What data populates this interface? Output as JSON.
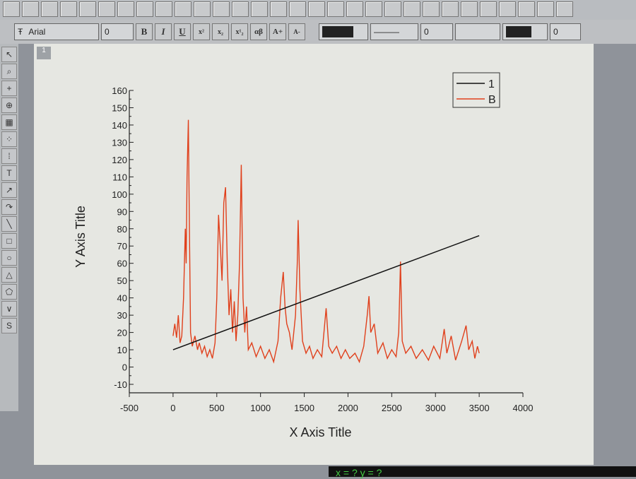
{
  "toolbar": {
    "font_name": "Arial",
    "font_size": "0",
    "bold": "B",
    "italic": "I",
    "underline": "U",
    "superscript": "x²",
    "subscript": "x₂",
    "supsub": "x¹₂",
    "greek": "αβ",
    "increase_font": "A+",
    "decrease_font": "A-",
    "line_width": "0",
    "fill_width": "0"
  },
  "layer_tab": "1",
  "status": {
    "coords": "x = ?  y = ?"
  },
  "chart_data": {
    "type": "line",
    "xlabel": "X Axis Title",
    "ylabel": "Y Axis Title",
    "xlim": [
      -500,
      4000
    ],
    "ylim": [
      -10,
      160
    ],
    "xticks": [
      -500,
      0,
      500,
      1000,
      1500,
      2000,
      2500,
      3000,
      3500,
      4000
    ],
    "yticks": [
      -10,
      0,
      10,
      20,
      30,
      40,
      50,
      60,
      70,
      80,
      90,
      100,
      110,
      120,
      130,
      140,
      150,
      160
    ],
    "legend": "top-right",
    "series": [
      {
        "name": "1",
        "color": "#111111",
        "x": [
          0,
          3500
        ],
        "y": [
          10,
          76
        ]
      },
      {
        "name": "B",
        "color": "#e0401c",
        "x": [
          0,
          20,
          40,
          60,
          80,
          100,
          120,
          140,
          150,
          160,
          175,
          185,
          200,
          220,
          250,
          280,
          300,
          330,
          360,
          390,
          420,
          450,
          480,
          500,
          520,
          540,
          560,
          580,
          600,
          620,
          640,
          660,
          680,
          700,
          720,
          740,
          760,
          780,
          800,
          820,
          840,
          860,
          900,
          950,
          1000,
          1050,
          1100,
          1150,
          1200,
          1230,
          1260,
          1280,
          1300,
          1330,
          1360,
          1400,
          1420,
          1430,
          1450,
          1480,
          1520,
          1560,
          1600,
          1650,
          1700,
          1750,
          1780,
          1820,
          1870,
          1920,
          1970,
          2020,
          2080,
          2130,
          2180,
          2220,
          2240,
          2260,
          2300,
          2340,
          2400,
          2450,
          2500,
          2550,
          2580,
          2600,
          2620,
          2660,
          2720,
          2780,
          2850,
          2920,
          2980,
          3050,
          3100,
          3130,
          3180,
          3230,
          3300,
          3350,
          3380,
          3420,
          3450,
          3480,
          3500
        ],
        "y": [
          18,
          25,
          17,
          30,
          14,
          18,
          40,
          80,
          60,
          110,
          143,
          90,
          20,
          12,
          18,
          10,
          14,
          8,
          12,
          6,
          10,
          5,
          14,
          40,
          88,
          70,
          50,
          95,
          104,
          60,
          30,
          45,
          20,
          38,
          15,
          30,
          60,
          117,
          40,
          20,
          35,
          10,
          14,
          6,
          12,
          5,
          10,
          3,
          15,
          40,
          55,
          35,
          25,
          20,
          10,
          30,
          60,
          85,
          45,
          15,
          8,
          12,
          5,
          10,
          6,
          34,
          12,
          8,
          12,
          5,
          10,
          5,
          8,
          3,
          12,
          30,
          41,
          20,
          25,
          8,
          14,
          5,
          10,
          6,
          20,
          61,
          15,
          8,
          12,
          5,
          10,
          4,
          12,
          5,
          22,
          8,
          18,
          4,
          15,
          24,
          10,
          15,
          5,
          12,
          8
        ]
      }
    ]
  }
}
